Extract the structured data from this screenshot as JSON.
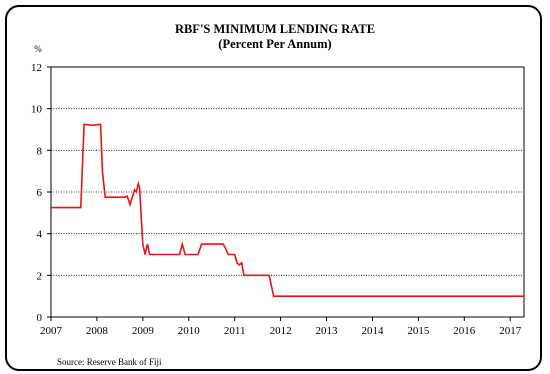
{
  "chart_data": {
    "type": "line",
    "title": "RBF'S MINIMUM LENDING RATE",
    "subtitle": "(Percent Per Annum)",
    "ylabel": "%",
    "xlabel": "",
    "source": "Source:  Reserve Bank of Fiji",
    "xlim": [
      2007,
      2017.3
    ],
    "ylim": [
      0,
      12
    ],
    "x_ticks": [
      "2007",
      "2008",
      "2009",
      "2010",
      "2011",
      "2012",
      "2013",
      "2014",
      "2015",
      "2016",
      "2017"
    ],
    "y_ticks": [
      "0",
      "2",
      "4",
      "6",
      "8",
      "10",
      "12"
    ],
    "grid": "horizontal dotted",
    "line_color": "#e8141b",
    "series": [
      {
        "name": "",
        "x": [
          2007.0,
          2007.65,
          2007.68,
          2007.72,
          2007.9,
          2008.08,
          2008.12,
          2008.18,
          2008.6,
          2008.66,
          2008.72,
          2008.82,
          2008.86,
          2008.9,
          2008.93,
          2009.0,
          2009.05,
          2009.1,
          2009.15,
          2009.2,
          2009.22,
          2009.8,
          2009.86,
          2009.92,
          2009.98,
          2010.2,
          2010.28,
          2010.34,
          2010.75,
          2010.8,
          2010.86,
          2011.0,
          2011.05,
          2011.1,
          2011.15,
          2011.2,
          2011.25,
          2011.3,
          2011.75,
          2011.8,
          2011.85,
          2011.9,
          2017.3
        ],
        "y": [
          5.25,
          5.25,
          7.0,
          9.25,
          9.2,
          9.25,
          7.0,
          5.75,
          5.75,
          5.8,
          5.4,
          6.1,
          6.0,
          6.4,
          6.2,
          3.5,
          3.0,
          3.5,
          3.0,
          3.0,
          3.0,
          3.0,
          3.5,
          3.0,
          3.0,
          3.0,
          3.5,
          3.5,
          3.5,
          3.3,
          3.0,
          3.0,
          2.6,
          2.5,
          2.6,
          2.0,
          2.0,
          2.0,
          2.0,
          1.5,
          1.0,
          1.0,
          1.0
        ]
      }
    ]
  }
}
